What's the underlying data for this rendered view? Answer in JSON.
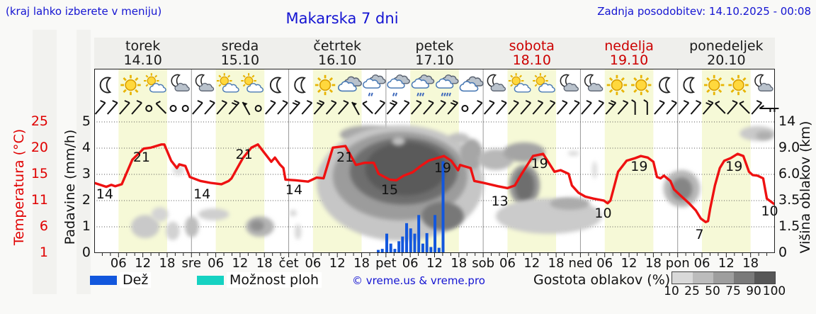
{
  "header": {
    "hint": "(kraj lahko izberete v meniju)",
    "title": "Makarska 7 dni",
    "updated": "Zadnja posodobitev: 14.10.2025 - 00:08"
  },
  "days": [
    {
      "name": "torek",
      "date": "14.10",
      "red": false
    },
    {
      "name": "sreda",
      "date": "15.10",
      "red": false
    },
    {
      "name": "četrtek",
      "date": "16.10",
      "red": false
    },
    {
      "name": "petek",
      "date": "17.10",
      "red": false
    },
    {
      "name": "sobota",
      "date": "18.10",
      "red": true
    },
    {
      "name": "nedelja",
      "date": "19.10",
      "red": true
    },
    {
      "name": "ponedeljek",
      "date": "20.10",
      "red": false
    }
  ],
  "axes": {
    "temp": {
      "label": "Temperatura (°C)",
      "ticks": [
        "25",
        "20",
        "15",
        "11",
        "6",
        "1"
      ],
      "color": "#e00000"
    },
    "rain": {
      "label": "Padavine (mm/h)",
      "ticks": [
        "5",
        "4",
        "3",
        "2",
        "1",
        "0"
      ]
    },
    "cloud": {
      "label": "Višina oblakov (km)",
      "ticks": [
        "14",
        "9.0",
        "6.0",
        "3.5",
        "1.5",
        "0"
      ]
    },
    "time_ticks": [
      "06",
      "12",
      "18"
    ],
    "day_abbrevs": [
      "sre",
      "čet",
      "pet",
      "sob",
      "ned",
      "pon"
    ]
  },
  "legend": {
    "rain_label": "Dež",
    "rain_color": "#1257dd",
    "showers_label": "Možnost ploh",
    "showers_color": "#16d2c2",
    "copyright": "© vreme.us & vreme.pro",
    "cloud_label": "Gostota oblakov (%)",
    "cloud_scale_values": [
      "10",
      "25",
      "50",
      "75",
      "90",
      "100"
    ],
    "cloud_scale_colors": [
      "#d9d9d9",
      "#bcbcbc",
      "#9e9e9e",
      "#7a7a7a",
      "#575757"
    ]
  },
  "chart_data": {
    "type": "line",
    "x_unit": "hours",
    "x_range": [
      0,
      168
    ],
    "day_band_color": "#f6f9d7",
    "temp_axis_values": [
      1,
      6,
      11,
      15,
      20,
      25
    ],
    "cloud_axis_km": [
      0,
      1.5,
      3.5,
      6,
      9,
      14
    ],
    "rain_axis": [
      0,
      1,
      2,
      3,
      4,
      5
    ],
    "temperature": {
      "unit": "°C",
      "color": "#ee1111",
      "points": [
        [
          0,
          13.7
        ],
        [
          3,
          13.1
        ],
        [
          4.2,
          13.4
        ],
        [
          5.2,
          13.2
        ],
        [
          6.8,
          13.5
        ],
        [
          9.4,
          17.8
        ],
        [
          12.2,
          19.9
        ],
        [
          14,
          20.1
        ],
        [
          16.6,
          20.7
        ],
        [
          17.3,
          20.7
        ],
        [
          19,
          17.6
        ],
        [
          20.4,
          16.2
        ],
        [
          21,
          16.9
        ],
        [
          22.5,
          16.6
        ],
        [
          23.6,
          14.6
        ],
        [
          26.2,
          14.0
        ],
        [
          28.7,
          13.7
        ],
        [
          31.4,
          13.5
        ],
        [
          33.2,
          14.0
        ],
        [
          33.9,
          14.4
        ],
        [
          36.7,
          18.1
        ],
        [
          38.8,
          20.1
        ],
        [
          40.4,
          20.7
        ],
        [
          41.9,
          19.2
        ],
        [
          43.7,
          17.4
        ],
        [
          44.6,
          18.2
        ],
        [
          45.8,
          16.9
        ],
        [
          46.7,
          16.2
        ],
        [
          47.2,
          14.2
        ],
        [
          49.6,
          14.1
        ],
        [
          52.8,
          13.9
        ],
        [
          54.9,
          14.5
        ],
        [
          56.6,
          14.4
        ],
        [
          57.1,
          15.5
        ],
        [
          58.9,
          20.1
        ],
        [
          62,
          20.4
        ],
        [
          64.6,
          16.8
        ],
        [
          66.7,
          17.2
        ],
        [
          69,
          17.2
        ],
        [
          70.2,
          15.1
        ],
        [
          72.9,
          14.2
        ],
        [
          74.6,
          14.1
        ],
        [
          76.4,
          14.8
        ],
        [
          78.6,
          15.4
        ],
        [
          80.4,
          16.5
        ],
        [
          82.5,
          17.6
        ],
        [
          86.3,
          18.5
        ],
        [
          88.1,
          17.6
        ],
        [
          89.8,
          15.8
        ],
        [
          90.3,
          16.8
        ],
        [
          92.9,
          16.2
        ],
        [
          93.8,
          14.0
        ],
        [
          96.1,
          13.7
        ],
        [
          99.6,
          13.2
        ],
        [
          102,
          12.9
        ],
        [
          103.8,
          13.3
        ],
        [
          105.5,
          15.1
        ],
        [
          108.3,
          18.5
        ],
        [
          110.8,
          18.9
        ],
        [
          113.6,
          15.5
        ],
        [
          115.1,
          15.8
        ],
        [
          117.1,
          15.1
        ],
        [
          117.9,
          13.3
        ],
        [
          119.5,
          12.2
        ],
        [
          121.2,
          11.6
        ],
        [
          123.2,
          11.3
        ],
        [
          125.8,
          11.0
        ],
        [
          126.7,
          10.5
        ],
        [
          127.4,
          11.0
        ],
        [
          129.3,
          15.5
        ],
        [
          131.4,
          17.6
        ],
        [
          133.5,
          18.1
        ],
        [
          134.9,
          18.5
        ],
        [
          136.6,
          18.2
        ],
        [
          138,
          17.4
        ],
        [
          138.9,
          14.6
        ],
        [
          139.8,
          14.4
        ],
        [
          140.6,
          14.8
        ],
        [
          142.2,
          14.0
        ],
        [
          143.1,
          12.7
        ],
        [
          144.5,
          11.9
        ],
        [
          146.8,
          10.5
        ],
        [
          148.5,
          9.1
        ],
        [
          149.7,
          7.6
        ],
        [
          150.9,
          6.9
        ],
        [
          151.5,
          7.1
        ],
        [
          152,
          9.4
        ],
        [
          153.2,
          13.3
        ],
        [
          154.4,
          16.2
        ],
        [
          155.5,
          17.6
        ],
        [
          157.1,
          18.1
        ],
        [
          158.8,
          18.9
        ],
        [
          160.2,
          18.5
        ],
        [
          161.6,
          15.5
        ],
        [
          162.5,
          14.9
        ],
        [
          163.7,
          14.8
        ],
        [
          165.1,
          14.4
        ],
        [
          166,
          11.3
        ],
        [
          167.7,
          10.4
        ]
      ]
    },
    "temp_labels": [
      {
        "t": 2.6,
        "y": 177,
        "text": "14"
      },
      {
        "t": 11.7,
        "y": 125,
        "text": "21"
      },
      {
        "t": 26.6,
        "y": 177,
        "text": "14"
      },
      {
        "t": 37.0,
        "y": 121,
        "text": "21"
      },
      {
        "t": 49.3,
        "y": 171,
        "text": "14"
      },
      {
        "t": 61.9,
        "y": 125,
        "text": "21"
      },
      {
        "t": 72.9,
        "y": 171,
        "text": "15"
      },
      {
        "t": 86.0,
        "y": 140,
        "text": "19"
      },
      {
        "t": 100.1,
        "y": 187,
        "text": "13"
      },
      {
        "t": 109.9,
        "y": 134,
        "text": "19"
      },
      {
        "t": 125.6,
        "y": 204,
        "text": "10"
      },
      {
        "t": 134.5,
        "y": 138,
        "text": "19"
      },
      {
        "t": 149.4,
        "y": 234,
        "text": "7"
      },
      {
        "t": 157.9,
        "y": 138,
        "text": "19"
      },
      {
        "t": 166.7,
        "y": 201,
        "text": "10"
      }
    ],
    "rain": {
      "unit": "mm/h",
      "color": "#1257dd",
      "bars": [
        [
          70.1,
          0.12
        ],
        [
          71.1,
          0.16
        ],
        [
          72.2,
          0.74
        ],
        [
          73.2,
          0.36
        ],
        [
          74.2,
          0.16
        ],
        [
          75.2,
          0.45
        ],
        [
          76.1,
          0.63
        ],
        [
          77.1,
          1.14
        ],
        [
          78.1,
          0.94
        ],
        [
          79.1,
          0.74
        ],
        [
          80.1,
          1.45
        ],
        [
          81.1,
          0.36
        ],
        [
          82.1,
          0.76
        ],
        [
          83.1,
          0.23
        ],
        [
          84.1,
          1.45
        ],
        [
          85.1,
          0.2
        ],
        [
          86.1,
          3.5
        ]
      ]
    },
    "clouds": {
      "blob_format": [
        "t_hours",
        "km_top",
        "km_bottom",
        "radius_hours",
        "gray_color"
      ],
      "blobs": [
        [
          12.6,
          2.4,
          0.85,
          3.5,
          "#c9c9c9"
        ],
        [
          16.2,
          3.0,
          1.9,
          2.1,
          "#d4d4d4"
        ],
        [
          19.4,
          1.9,
          0.73,
          1.7,
          "#d2d2d2"
        ],
        [
          20.8,
          7.1,
          5.9,
          1.4,
          "#dedede"
        ],
        [
          24.1,
          2.3,
          0.9,
          1.7,
          "#bdbdbd"
        ],
        [
          29.5,
          2.9,
          2.0,
          3.8,
          "#cfcfcf"
        ],
        [
          40.9,
          2.3,
          0.93,
          3.5,
          "#b3b3b3"
        ],
        [
          40.2,
          2.0,
          1.26,
          1.7,
          "#8f8f8f"
        ],
        [
          49.1,
          2.8,
          2.3,
          0.9,
          "#d8d8d8"
        ],
        [
          50.3,
          1.7,
          0.77,
          0.8,
          "#d8d8d8"
        ],
        [
          56.8,
          7.1,
          5.6,
          1.1,
          "#dadada"
        ],
        [
          67.6,
          13.3,
          9.9,
          7.0,
          "#a8a8a8"
        ],
        [
          75.5,
          13.4,
          0.69,
          20.6,
          "#c6c6c6"
        ],
        [
          75.5,
          12.1,
          2.0,
          16.6,
          "#9c9c9c"
        ],
        [
          76.4,
          10.9,
          3.2,
          13.3,
          "#6e6e6e"
        ],
        [
          76.9,
          10.1,
          4.0,
          10.0,
          "#5a5a5a"
        ],
        [
          75.1,
          11.2,
          9.5,
          1.6,
          "#bdbdbd"
        ],
        [
          86.0,
          3.4,
          1.3,
          5.2,
          "#787878"
        ],
        [
          90.0,
          11.9,
          9.8,
          2.6,
          "#c0c0c0"
        ],
        [
          93.1,
          10.8,
          6.5,
          2.8,
          "#a6a6a6"
        ],
        [
          99.1,
          8.9,
          6.5,
          4.4,
          "#b8b8b8"
        ],
        [
          106.1,
          10.1,
          7.4,
          5.2,
          "#a4a4a4"
        ],
        [
          106.2,
          7.1,
          3.1,
          3.8,
          "#969696"
        ],
        [
          106.2,
          6.5,
          3.45,
          2.4,
          "#6e6e6e"
        ],
        [
          112.2,
          3.7,
          1.1,
          13.1,
          "#cbcbcb"
        ],
        [
          117.4,
          3.8,
          2.8,
          4.9,
          "#ababab"
        ],
        [
          118.3,
          8.7,
          8.1,
          1.4,
          "#dcdcdc"
        ],
        [
          123.5,
          7.5,
          5.6,
          0.6,
          "#dcdcdc"
        ],
        [
          145.0,
          6.5,
          3.0,
          4.5,
          "#b8b8b8"
        ],
        [
          145.0,
          5.7,
          3.5,
          2.6,
          "#858585"
        ],
        [
          163.7,
          13.2,
          10.4,
          4.4,
          "#c9c9c9"
        ],
        [
          165.4,
          12.2,
          10.6,
          2.1,
          "#aeaeae"
        ]
      ]
    },
    "wind_barbs": [
      "b",
      "b",
      "b",
      "b",
      "o",
      "d",
      "o",
      "o",
      "b",
      "b",
      "b",
      "B",
      "f",
      "o",
      "b",
      "b",
      "B",
      "b",
      "B",
      "b",
      "b",
      "f",
      "d",
      "b",
      "B",
      "b",
      "b",
      "b",
      "b",
      "B",
      "o",
      "b",
      "b",
      "b",
      "b",
      "b",
      "b",
      "b",
      "b",
      "b",
      "b",
      "b",
      "B",
      "b",
      "v",
      "v",
      "b",
      "b",
      "b",
      "b",
      "B",
      "d",
      "b",
      "d",
      "b",
      "h"
    ],
    "weather_icons": [
      "moon",
      "sun",
      "sun-cloud",
      "moon-cloud",
      "moon-cloud",
      "sun-cloud",
      "sun-cloud",
      "moon",
      "moon",
      "sun",
      "clouds",
      "cloud-rain-1",
      "cloud-rain-1",
      "cloud-rain-2",
      "cloud-rain-3",
      "clouds",
      "moon-cloud",
      "sun-cloud",
      "sun-cloud",
      "moon-cloud",
      "moon-cloud",
      "sun",
      "sun",
      "moon",
      "moon",
      "sun",
      "sun",
      "moon-cloud"
    ]
  }
}
